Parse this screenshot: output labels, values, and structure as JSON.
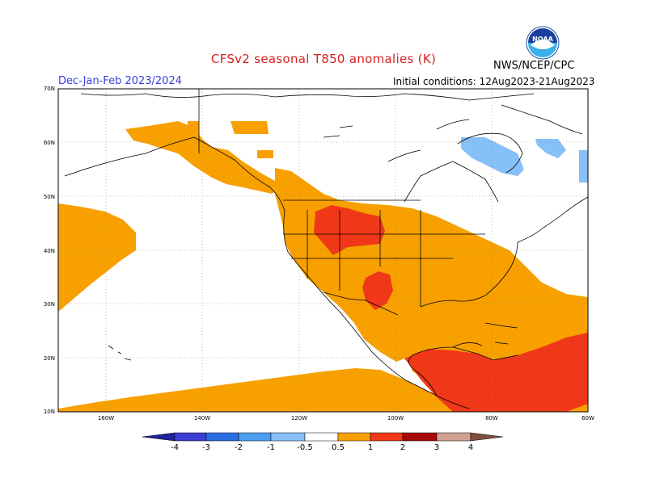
{
  "title": "CFSv2 seasonal T850 anomalies (K)",
  "org": "NWS/NCEP/CPC",
  "period": "Dec-Jan-Feb 2023/2024",
  "initial_conditions": "Initial conditions: 12Aug2023-21Aug2023",
  "logo": {
    "icon": "noaa-logo-icon",
    "text": "NOAA"
  },
  "lat_labels": [
    "70N",
    "60N",
    "50N",
    "40N",
    "30N",
    "20N",
    "10N"
  ],
  "lon_labels": [
    "160W",
    "140W",
    "120W",
    "100W",
    "80W",
    "60W"
  ],
  "colorbar": {
    "labels": [
      "-4",
      "-3",
      "-2",
      "-1",
      "-0.5",
      "0.5",
      "1",
      "2",
      "3",
      "4"
    ],
    "colors": [
      "#2020a0",
      "#3c3cd0",
      "#2a6ee0",
      "#4a9ef0",
      "#86c0f8",
      "#ffffff",
      "#f7a000",
      "#f03818",
      "#a80808",
      "#d0a090",
      "#805040"
    ]
  },
  "colors": {
    "anomaly_05_1": "#f7a000",
    "anomaly_1_2": "#f03818",
    "anomaly_neg_05_1": "#86c0f8",
    "title": "#d62020",
    "period": "#3a3ae0"
  }
}
